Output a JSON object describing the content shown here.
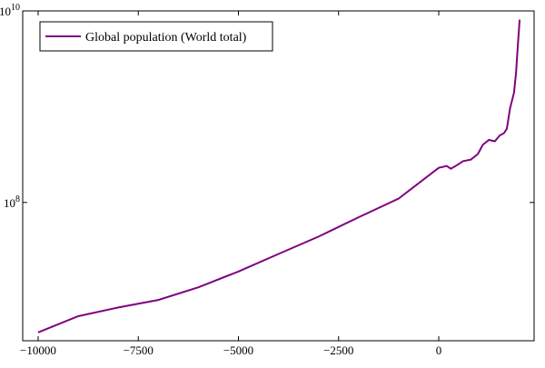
{
  "chart_data": {
    "type": "line",
    "title": "",
    "xlabel": "",
    "ylabel": "",
    "xscale": "linear",
    "yscale": "log",
    "xlim": [
      -10385,
      2380
    ],
    "ylim": [
      3600000,
      10000000000
    ],
    "xticks": [
      -10000,
      -7500,
      -5000,
      -2500,
      0
    ],
    "xtick_labels": [
      "−10000",
      "−7500",
      "−5000",
      "−2500",
      "0"
    ],
    "yticks": [
      100000000,
      10000000000
    ],
    "ytick_labels": [
      {
        "base": "10",
        "exp": "8"
      },
      {
        "base": "10",
        "exp": "10"
      }
    ],
    "grid": false,
    "legend": {
      "placement": "top-left",
      "entries": [
        "Global population (World total)"
      ]
    },
    "series": [
      {
        "name": "Global population (World total)",
        "color": "#800080",
        "x": [
          -10000,
          -9000,
          -8000,
          -7000,
          -6000,
          -5000,
          -4000,
          -3000,
          -2000,
          -1000,
          0,
          200,
          300,
          420,
          610,
          800,
          975,
          1100,
          1250,
          1400,
          1520,
          1630,
          1700,
          1780,
          1880,
          1930,
          1970,
          2020
        ],
        "y": [
          4400000,
          6500000,
          8000000,
          9600000,
          13000000,
          19000000,
          29000000,
          44000000,
          70000000,
          110000000,
          230000000,
          240000000,
          225000000,
          240000000,
          270000000,
          280000000,
          320000000,
          400000000,
          450000000,
          435000000,
          500000000,
          530000000,
          590000000,
          960000000,
          1400000000,
          2300000000,
          4100000000,
          8100000000
        ]
      }
    ]
  }
}
